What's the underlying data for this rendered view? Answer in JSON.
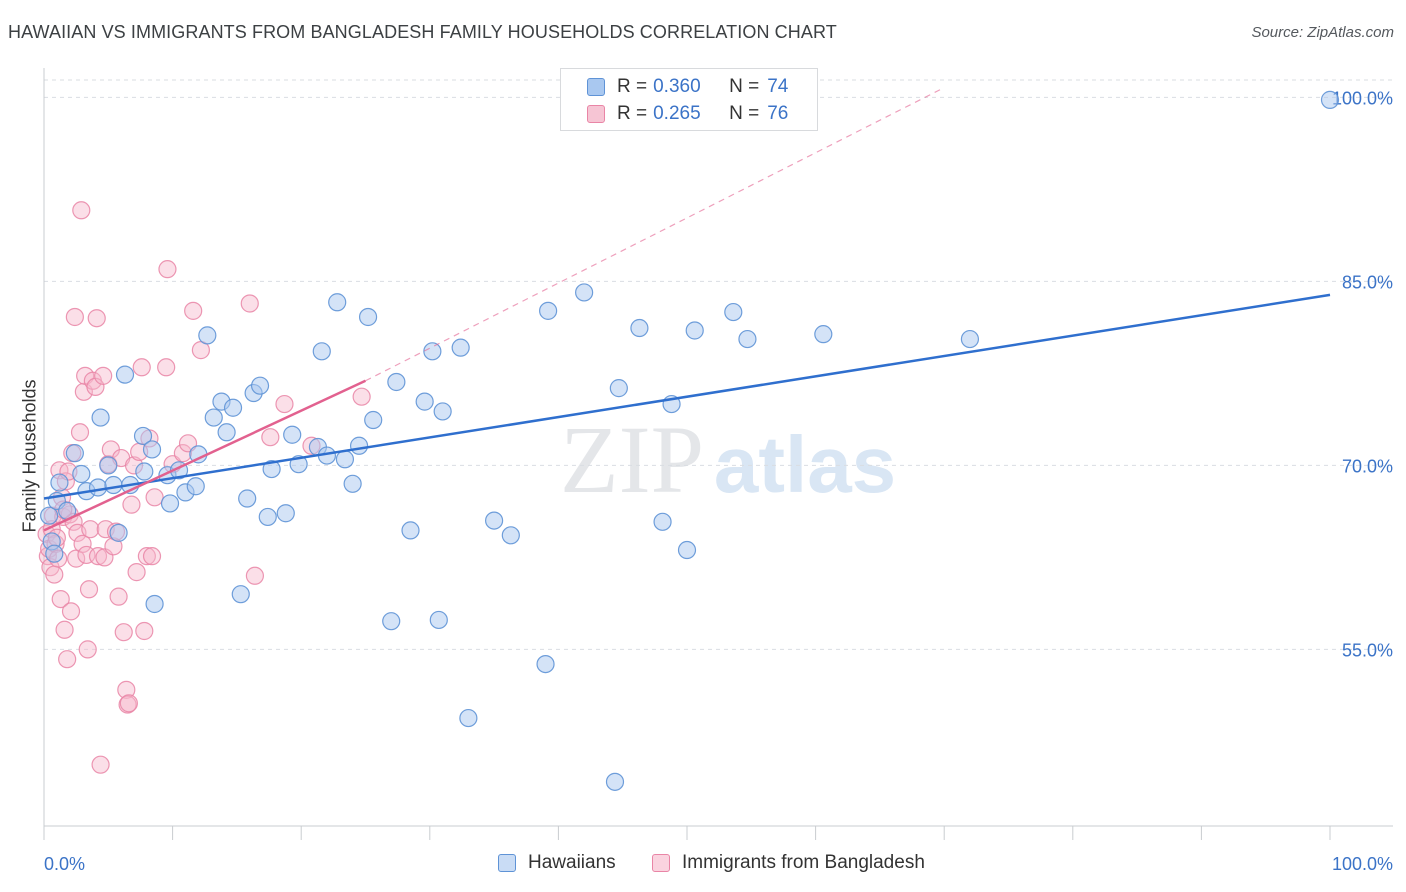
{
  "title": "HAWAIIAN VS IMMIGRANTS FROM BANGLADESH FAMILY HOUSEHOLDS CORRELATION CHART",
  "source": "Source: ZipAtlas.com",
  "watermark": {
    "zip": "ZIP",
    "atlas": "atlas"
  },
  "colors": {
    "blue_fill": "#a9c8f0",
    "blue_stroke": "#5f93d6",
    "blue_line": "#2f6fce",
    "pink_fill": "#f6b8cc",
    "pink_stroke": "#e985a6",
    "pink_line": "#e2618f",
    "axis_label": "#3b73c7",
    "grid": "#d9dde2"
  },
  "legend": {
    "rows": [
      {
        "r_label": "R =",
        "r_value": "0.360",
        "n_label": "N =",
        "n_value": "74"
      },
      {
        "r_label": "R =",
        "r_value": "0.265",
        "n_label": "N =",
        "n_value": "76"
      }
    ]
  },
  "bottom_legend": [
    "Hawaiians",
    "Immigrants from Bangladesh"
  ],
  "chart_data": {
    "type": "scatter",
    "title": "HAWAIIAN VS IMMIGRANTS FROM BANGLADESH FAMILY HOUSEHOLDS CORRELATION CHART",
    "xlabel": "",
    "ylabel": "Family Households",
    "xlim": [
      0,
      100
    ],
    "ylim": [
      40.6,
      102.4
    ],
    "x_tick_labels": [
      "0.0%",
      "100.0%"
    ],
    "y_ticks": [
      55,
      70,
      85,
      100
    ],
    "y_tick_labels": [
      "55.0%",
      "70.0%",
      "85.0%",
      "100.0%"
    ],
    "series": [
      {
        "name": "Hawaiians",
        "r": 0.36,
        "n": 74,
        "trend": {
          "x0": 0,
          "y0": 67.3,
          "x1": 100,
          "y1": 83.9
        },
        "points": [
          [
            0.4,
            65.9
          ],
          [
            0.6,
            63.8
          ],
          [
            0.8,
            62.8
          ],
          [
            1.0,
            67.1
          ],
          [
            1.2,
            68.6
          ],
          [
            1.8,
            66.3
          ],
          [
            2.4,
            71.0
          ],
          [
            2.9,
            69.3
          ],
          [
            3.3,
            67.9
          ],
          [
            4.2,
            68.2
          ],
          [
            4.4,
            73.9
          ],
          [
            5.0,
            70.0
          ],
          [
            5.4,
            68.4
          ],
          [
            5.8,
            64.5
          ],
          [
            6.3,
            77.4
          ],
          [
            6.7,
            68.4
          ],
          [
            7.7,
            72.4
          ],
          [
            7.8,
            69.5
          ],
          [
            8.4,
            71.3
          ],
          [
            8.6,
            58.7
          ],
          [
            9.6,
            69.2
          ],
          [
            9.8,
            66.9
          ],
          [
            10.5,
            69.6
          ],
          [
            11.0,
            67.8
          ],
          [
            11.8,
            68.3
          ],
          [
            12.0,
            70.9
          ],
          [
            12.7,
            80.6
          ],
          [
            13.2,
            73.9
          ],
          [
            13.8,
            75.2
          ],
          [
            14.2,
            72.7
          ],
          [
            14.7,
            74.7
          ],
          [
            15.3,
            59.5
          ],
          [
            15.8,
            67.3
          ],
          [
            16.3,
            75.9
          ],
          [
            16.8,
            76.5
          ],
          [
            17.4,
            65.8
          ],
          [
            17.7,
            69.7
          ],
          [
            18.8,
            66.1
          ],
          [
            19.3,
            72.5
          ],
          [
            19.8,
            70.1
          ],
          [
            21.3,
            71.5
          ],
          [
            21.6,
            79.3
          ],
          [
            22.0,
            70.8
          ],
          [
            22.8,
            83.3
          ],
          [
            23.4,
            70.5
          ],
          [
            24.0,
            68.5
          ],
          [
            24.5,
            71.6
          ],
          [
            25.2,
            82.1
          ],
          [
            25.6,
            73.7
          ],
          [
            27.0,
            57.3
          ],
          [
            27.4,
            76.8
          ],
          [
            28.5,
            64.7
          ],
          [
            29.6,
            75.2
          ],
          [
            30.2,
            79.3
          ],
          [
            30.7,
            57.4
          ],
          [
            31.0,
            74.4
          ],
          [
            32.4,
            79.6
          ],
          [
            33.0,
            49.4
          ],
          [
            35.0,
            65.5
          ],
          [
            36.3,
            64.3
          ],
          [
            39.0,
            53.8
          ],
          [
            39.2,
            82.6
          ],
          [
            42.0,
            84.1
          ],
          [
            44.4,
            44.2
          ],
          [
            44.7,
            76.3
          ],
          [
            46.3,
            81.2
          ],
          [
            48.1,
            65.4
          ],
          [
            48.8,
            75.0
          ],
          [
            50.0,
            63.1
          ],
          [
            50.6,
            81.0
          ],
          [
            53.6,
            82.5
          ],
          [
            54.7,
            80.3
          ],
          [
            60.6,
            80.7
          ],
          [
            72.0,
            80.3
          ],
          [
            100.0,
            99.8
          ]
        ]
      },
      {
        "name": "Immigrants from Bangladesh",
        "r": 0.265,
        "n": 76,
        "trend": {
          "x0": 0,
          "y0": 64.7,
          "x1": 25.0,
          "y1": 76.9
        },
        "trend_extension": {
          "x0": 25.0,
          "y0": 76.9,
          "x1": 70.0,
          "y1": 100.8
        },
        "points": [
          [
            0.2,
            64.4
          ],
          [
            0.3,
            62.6
          ],
          [
            0.4,
            63.2
          ],
          [
            0.5,
            61.7
          ],
          [
            0.6,
            64.8
          ],
          [
            0.7,
            65.9
          ],
          [
            0.8,
            61.1
          ],
          [
            0.9,
            63.6
          ],
          [
            1.0,
            64.1
          ],
          [
            1.1,
            62.4
          ],
          [
            1.2,
            69.6
          ],
          [
            1.3,
            59.1
          ],
          [
            1.4,
            67.4
          ],
          [
            1.5,
            65.8
          ],
          [
            1.6,
            56.6
          ],
          [
            1.7,
            68.7
          ],
          [
            1.8,
            54.2
          ],
          [
            1.9,
            69.5
          ],
          [
            2.0,
            66.0
          ],
          [
            2.1,
            58.1
          ],
          [
            2.2,
            71.0
          ],
          [
            2.3,
            65.4
          ],
          [
            2.4,
            82.1
          ],
          [
            2.5,
            62.4
          ],
          [
            2.6,
            64.5
          ],
          [
            2.8,
            72.7
          ],
          [
            2.9,
            90.8
          ],
          [
            3.0,
            63.6
          ],
          [
            3.1,
            76.0
          ],
          [
            3.2,
            77.3
          ],
          [
            3.3,
            62.7
          ],
          [
            3.4,
            55.0
          ],
          [
            3.5,
            59.9
          ],
          [
            3.6,
            64.8
          ],
          [
            3.8,
            76.9
          ],
          [
            4.0,
            76.4
          ],
          [
            4.1,
            82.0
          ],
          [
            4.2,
            62.6
          ],
          [
            4.4,
            45.6
          ],
          [
            4.6,
            77.3
          ],
          [
            4.7,
            62.5
          ],
          [
            4.8,
            64.8
          ],
          [
            5.0,
            70.1
          ],
          [
            5.2,
            71.3
          ],
          [
            5.4,
            63.4
          ],
          [
            5.6,
            64.6
          ],
          [
            5.8,
            59.3
          ],
          [
            6.0,
            70.6
          ],
          [
            6.2,
            56.4
          ],
          [
            6.4,
            51.7
          ],
          [
            6.5,
            50.5
          ],
          [
            6.6,
            50.6
          ],
          [
            6.8,
            66.8
          ],
          [
            7.0,
            70.0
          ],
          [
            7.2,
            61.3
          ],
          [
            7.4,
            71.1
          ],
          [
            7.6,
            78.0
          ],
          [
            7.8,
            56.5
          ],
          [
            8.0,
            62.6
          ],
          [
            8.2,
            72.2
          ],
          [
            8.4,
            62.6
          ],
          [
            8.6,
            67.4
          ],
          [
            9.5,
            78.0
          ],
          [
            9.6,
            86.0
          ],
          [
            10.0,
            70.1
          ],
          [
            10.8,
            71.0
          ],
          [
            11.2,
            71.8
          ],
          [
            11.6,
            82.6
          ],
          [
            12.2,
            79.4
          ],
          [
            16.0,
            83.2
          ],
          [
            16.4,
            61.0
          ],
          [
            17.6,
            72.3
          ],
          [
            18.7,
            75.0
          ],
          [
            20.8,
            71.6
          ],
          [
            24.7,
            75.6
          ],
          [
            1.5,
            66.4
          ]
        ]
      }
    ]
  }
}
